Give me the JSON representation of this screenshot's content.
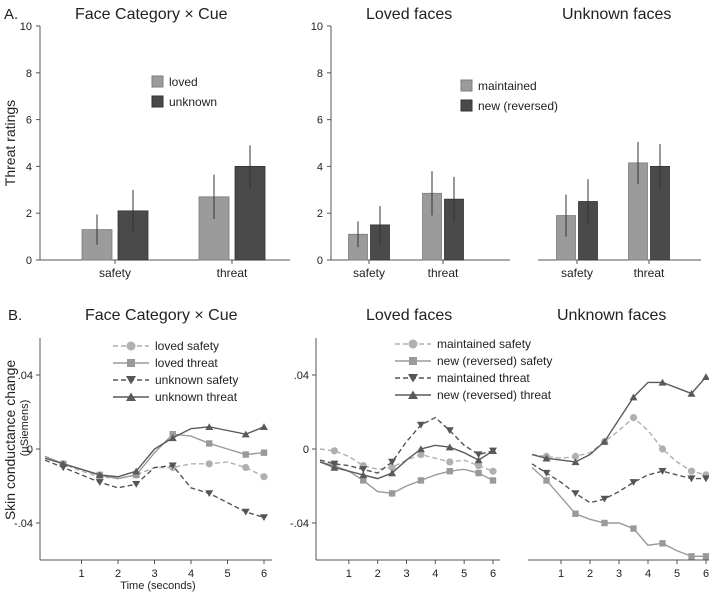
{
  "figure": {
    "panel_a_label": "A.",
    "panel_b_label": "B.",
    "a_ylabel": "Threat  ratings",
    "b_ylabel": "Skin conductance  change",
    "b_ylabel_unit": "(µSiemens)",
    "b_xlabel": "Time (seconds)"
  },
  "colors": {
    "loved": "#9b9b9b",
    "unknown": "#4a4a4a",
    "maintained_safety": "#b0b0b0",
    "new_safety": "#9a9a9a",
    "maintained_threat": "#555555",
    "new_threat": "#5a5a5a",
    "axis": "#7a7a7a"
  },
  "chart_data": [
    {
      "id": "a1",
      "type": "bar",
      "title": "Face Category × Cue",
      "categories": [
        "safety",
        "threat"
      ],
      "ylim": [
        0,
        10
      ],
      "yticks": [
        0,
        2,
        4,
        6,
        8,
        10
      ],
      "ylabel": "Threat ratings",
      "series": [
        {
          "name": "loved",
          "values": [
            1.3,
            2.7
          ],
          "errors": [
            0.65,
            0.95
          ]
        },
        {
          "name": "unknown",
          "values": [
            2.1,
            4.0
          ],
          "errors": [
            0.9,
            0.9
          ]
        }
      ],
      "legend": [
        "loved",
        "unknown"
      ]
    },
    {
      "id": "a2",
      "type": "bar",
      "title": "Loved faces",
      "categories": [
        "safety",
        "threat"
      ],
      "ylim": [
        0,
        10
      ],
      "yticks": [
        0,
        2,
        4,
        6,
        8,
        10
      ],
      "series": [
        {
          "name": "maintained",
          "values": [
            1.1,
            2.85
          ],
          "errors": [
            0.55,
            0.95
          ]
        },
        {
          "name": "new (reversed)",
          "values": [
            1.5,
            2.6
          ],
          "errors": [
            0.8,
            0.95
          ]
        }
      ],
      "legend": [
        "maintained",
        "new (reversed)"
      ]
    },
    {
      "id": "a3",
      "type": "bar",
      "title": "Unknown  faces",
      "categories": [
        "safety",
        "threat"
      ],
      "ylim": [
        0,
        10
      ],
      "series": [
        {
          "name": "maintained",
          "values": [
            1.9,
            4.15
          ],
          "errors": [
            0.9,
            0.9
          ]
        },
        {
          "name": "new (reversed)",
          "values": [
            2.5,
            4.0
          ],
          "errors": [
            0.95,
            0.95
          ]
        }
      ]
    },
    {
      "id": "b1",
      "type": "line",
      "title": "Face Category × Cue",
      "x": [
        0,
        0.5,
        1,
        1.5,
        2,
        2.5,
        3,
        3.5,
        4,
        4.5,
        5,
        5.5,
        6
      ],
      "xticks": [
        1,
        2,
        3,
        4,
        5,
        6
      ],
      "ylim": [
        -0.06,
        0.06
      ],
      "yticks": [
        0.04,
        0,
        -0.04
      ],
      "ytick_labels": [
        ".04",
        "0",
        "-.04"
      ],
      "xlabel": "Time (seconds)",
      "series": [
        {
          "name": "loved  safety",
          "style": "dashed",
          "marker": "circle",
          "values": [
            -0.004,
            -0.008,
            -0.012,
            -0.015,
            -0.016,
            -0.014,
            -0.01,
            -0.01,
            -0.008,
            -0.008,
            -0.007,
            -0.01,
            -0.015
          ]
        },
        {
          "name": "loved  threat",
          "style": "solid",
          "marker": "square",
          "values": [
            -0.004,
            -0.008,
            -0.011,
            -0.014,
            -0.016,
            -0.014,
            -0.002,
            0.008,
            0.007,
            0.003,
            0.0,
            -0.003,
            -0.002
          ]
        },
        {
          "name": "unknown  safety",
          "style": "dashed",
          "marker": "triangle-down",
          "values": [
            -0.006,
            -0.01,
            -0.014,
            -0.018,
            -0.021,
            -0.019,
            -0.01,
            -0.009,
            -0.021,
            -0.024,
            -0.029,
            -0.034,
            -0.037
          ]
        },
        {
          "name": "unknown  threat",
          "style": "solid",
          "marker": "triangle-up",
          "values": [
            -0.005,
            -0.008,
            -0.011,
            -0.014,
            -0.015,
            -0.012,
            0.0,
            0.006,
            0.011,
            0.012,
            0.01,
            0.008,
            0.012
          ]
        }
      ]
    },
    {
      "id": "b2",
      "type": "line",
      "title": "Loved faces",
      "x": [
        0,
        0.5,
        1,
        1.5,
        2,
        2.5,
        3,
        3.5,
        4,
        4.5,
        5,
        5.5,
        6
      ],
      "xticks": [
        1,
        2,
        3,
        4,
        5,
        6
      ],
      "ylim": [
        -0.06,
        0.06
      ],
      "yticks": [
        0.04,
        0,
        -0.04
      ],
      "ytick_labels": [
        ".04",
        "0",
        "-.04"
      ],
      "series": [
        {
          "name": "maintained  safety",
          "style": "dashed",
          "marker": "circle",
          "values": [
            0.0,
            -0.001,
            -0.004,
            -0.009,
            -0.011,
            -0.01,
            -0.006,
            -0.003,
            -0.005,
            -0.007,
            -0.006,
            -0.009,
            -0.012
          ]
        },
        {
          "name": "new  (reversed)  safety",
          "style": "solid",
          "marker": "square",
          "values": [
            -0.007,
            -0.009,
            -0.012,
            -0.017,
            -0.023,
            -0.024,
            -0.02,
            -0.017,
            -0.014,
            -0.012,
            -0.011,
            -0.013,
            -0.017
          ]
        },
        {
          "name": "maintained  threat",
          "style": "dashed",
          "marker": "triangle-down",
          "values": [
            -0.006,
            -0.008,
            -0.009,
            -0.011,
            -0.013,
            -0.007,
            0.004,
            0.013,
            0.017,
            0.01,
            0.002,
            -0.003,
            -0.001
          ]
        },
        {
          "name": "new  (reversed)  threat",
          "style": "solid",
          "marker": "triangle-up",
          "values": [
            -0.007,
            -0.01,
            -0.012,
            -0.014,
            -0.016,
            -0.013,
            -0.006,
            0.0,
            0.002,
            0.001,
            -0.002,
            -0.006,
            -0.001
          ]
        }
      ]
    },
    {
      "id": "b3",
      "type": "line",
      "title": "Unknown  faces",
      "x": [
        0,
        0.5,
        1,
        1.5,
        2,
        2.5,
        3,
        3.5,
        4,
        4.5,
        5,
        5.5,
        6
      ],
      "xticks": [
        1,
        2,
        3,
        4,
        5,
        6
      ],
      "ylim": [
        -0.06,
        0.06
      ],
      "series": [
        {
          "name": "maintained  safety",
          "style": "dashed",
          "marker": "circle",
          "values": [
            -0.003,
            -0.004,
            -0.005,
            -0.004,
            -0.002,
            0.004,
            0.01,
            0.017,
            0.01,
            0.0,
            -0.007,
            -0.012,
            -0.014
          ]
        },
        {
          "name": "new  (reversed)  safety",
          "style": "solid",
          "marker": "square",
          "values": [
            -0.01,
            -0.017,
            -0.026,
            -0.035,
            -0.038,
            -0.04,
            -0.04,
            -0.043,
            -0.052,
            -0.051,
            -0.055,
            -0.058,
            -0.058
          ]
        },
        {
          "name": "maintained  threat",
          "style": "dashed",
          "marker": "triangle-down",
          "values": [
            -0.008,
            -0.013,
            -0.018,
            -0.024,
            -0.029,
            -0.027,
            -0.023,
            -0.018,
            -0.014,
            -0.012,
            -0.014,
            -0.016,
            -0.016
          ]
        },
        {
          "name": "new  (reversed)  threat",
          "style": "solid",
          "marker": "triangle-up",
          "values": [
            -0.003,
            -0.005,
            -0.006,
            -0.007,
            -0.003,
            0.004,
            0.016,
            0.028,
            0.036,
            0.036,
            0.033,
            0.03,
            0.039
          ]
        }
      ]
    }
  ]
}
